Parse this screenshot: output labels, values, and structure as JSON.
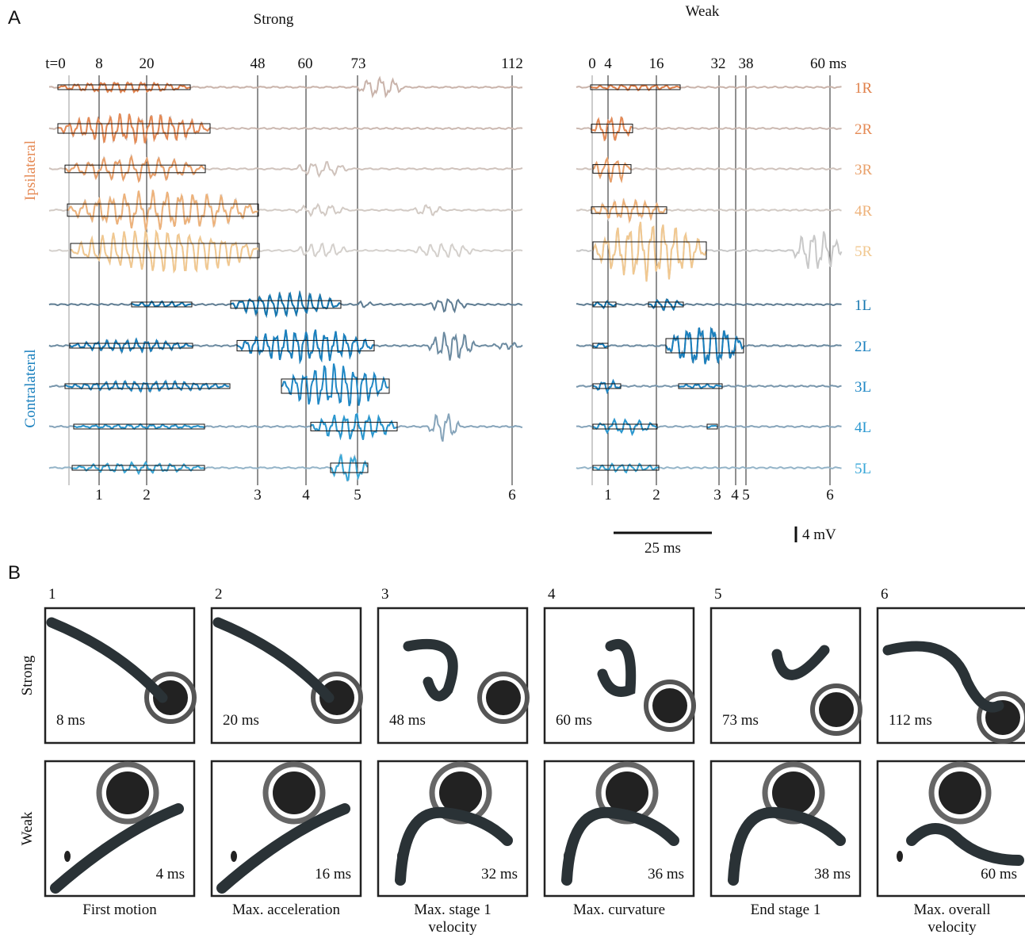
{
  "panel_a": {
    "label": "A",
    "strong": {
      "title": "Strong",
      "top_labels": [
        "t=0",
        "8",
        "20",
        "48",
        "60",
        "73",
        "112"
      ],
      "bottom_labels": [
        "1",
        "2",
        "3",
        "4",
        "5",
        "6"
      ]
    },
    "weak": {
      "title": "Weak",
      "top_labels": [
        "0",
        "4",
        "16",
        "32",
        "38",
        "60 ms"
      ],
      "bottom_labels": [
        "1",
        "2",
        "3",
        "4",
        "5",
        "6"
      ]
    },
    "channels": [
      "1R",
      "2R",
      "3R",
      "4R",
      "5R",
      "1L",
      "2L",
      "3L",
      "4L",
      "5L"
    ],
    "group_labels": [
      "Ipsilateral",
      "Contralateral"
    ],
    "time_scale": "25 ms",
    "voltage_scale": "4 mV"
  },
  "panel_b": {
    "label": "B",
    "frame_numbers": [
      "1",
      "2",
      "3",
      "4",
      "5",
      "6"
    ],
    "row_labels": [
      "Strong",
      "Weak"
    ],
    "strong_times": [
      "8 ms",
      "20 ms",
      "48 ms",
      "60 ms",
      "73 ms",
      "112 ms"
    ],
    "weak_times": [
      "4 ms",
      "16 ms",
      "32 ms",
      "36 ms",
      "38 ms",
      "60 ms"
    ],
    "captions": [
      "First motion",
      "Max. acceleration",
      "Max. stage 1 velocity",
      "Max. curvature",
      "End stage 1",
      "Max. overall velocity"
    ]
  }
}
